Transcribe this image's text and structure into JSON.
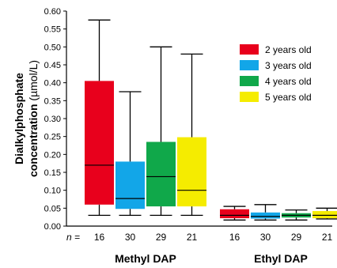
{
  "chart_data": {
    "type": "boxplot",
    "ylabel_line1": "Dialkylphosphate",
    "ylabel_line2_main": "concentration",
    "ylabel_line2_unit": "(µmol/L)",
    "ylim": [
      0,
      0.6
    ],
    "yticks": [
      "0.00",
      "0.05",
      "0.10",
      "0.15",
      "0.20",
      "0.25",
      "0.30",
      "0.35",
      "0.40",
      "0.45",
      "0.50",
      "0.55",
      "0.60"
    ],
    "n_prefix": "n =",
    "legend_position": "top-right",
    "series": [
      {
        "name": "2 years old",
        "color": "#e8001c"
      },
      {
        "name": "3 years old",
        "color": "#12a6e8"
      },
      {
        "name": "4 years old",
        "color": "#10a84a"
      },
      {
        "name": "5 years old",
        "color": "#f5ec00"
      }
    ],
    "groups": [
      {
        "label": "Methyl DAP",
        "n": [
          "16",
          "30",
          "29",
          "21"
        ],
        "boxes": [
          {
            "min": 0.03,
            "q1": 0.06,
            "median": 0.17,
            "q3": 0.405,
            "max": 0.575
          },
          {
            "min": 0.03,
            "q1": 0.048,
            "median": 0.077,
            "q3": 0.18,
            "max": 0.375
          },
          {
            "min": 0.03,
            "q1": 0.055,
            "median": 0.138,
            "q3": 0.235,
            "max": 0.5
          },
          {
            "min": 0.03,
            "q1": 0.055,
            "median": 0.1,
            "q3": 0.248,
            "max": 0.48
          }
        ]
      },
      {
        "label": "Ethyl DAP",
        "n": [
          "16",
          "30",
          "29",
          "21"
        ],
        "boxes": [
          {
            "min": 0.017,
            "q1": 0.022,
            "median": 0.03,
            "q3": 0.047,
            "max": 0.055
          },
          {
            "min": 0.017,
            "q1": 0.021,
            "median": 0.027,
            "q3": 0.038,
            "max": 0.06
          },
          {
            "min": 0.017,
            "q1": 0.024,
            "median": 0.03,
            "q3": 0.036,
            "max": 0.045
          },
          {
            "min": 0.02,
            "q1": 0.022,
            "median": 0.03,
            "q3": 0.042,
            "max": 0.05
          }
        ]
      }
    ]
  }
}
